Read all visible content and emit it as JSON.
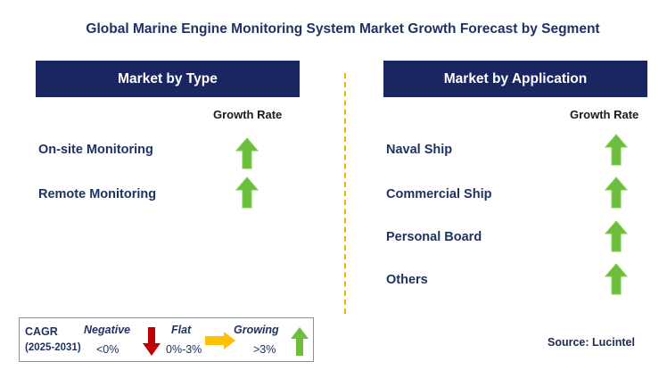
{
  "title": "Global Marine Engine Monitoring System Market Growth Forecast by Segment",
  "type_panel": {
    "header": "Market by Type",
    "column_label": "Growth Rate",
    "rows": [
      {
        "label": "On-site Monitoring",
        "growth": "growing"
      },
      {
        "label": "Remote Monitoring",
        "growth": "growing"
      }
    ]
  },
  "application_panel": {
    "header": "Market by Application",
    "column_label": "Growth Rate",
    "rows": [
      {
        "label": "Naval Ship",
        "growth": "growing"
      },
      {
        "label": "Commercial Ship",
        "growth": "growing"
      },
      {
        "label": "Personal Board",
        "growth": "growing"
      },
      {
        "label": "Others",
        "growth": "growing"
      }
    ]
  },
  "legend": {
    "cagr_label": "CAGR",
    "period": "(2025-2031)",
    "negative_label": "Negative",
    "negative_range": "<0%",
    "flat_label": "Flat",
    "flat_range": "0%-3%",
    "growing_label": "Growing",
    "growing_range": ">3%"
  },
  "source": "Source: Lucintel",
  "colors": {
    "header_bg": "#1a2661",
    "growing_arrow": "#6cbf3c",
    "negative_arrow": "#c00000",
    "flat_arrow": "#ffc000",
    "divider": "#f0b400"
  },
  "icons": {
    "growing": "up-arrow-icon",
    "negative": "down-arrow-icon",
    "flat": "right-arrow-icon"
  }
}
